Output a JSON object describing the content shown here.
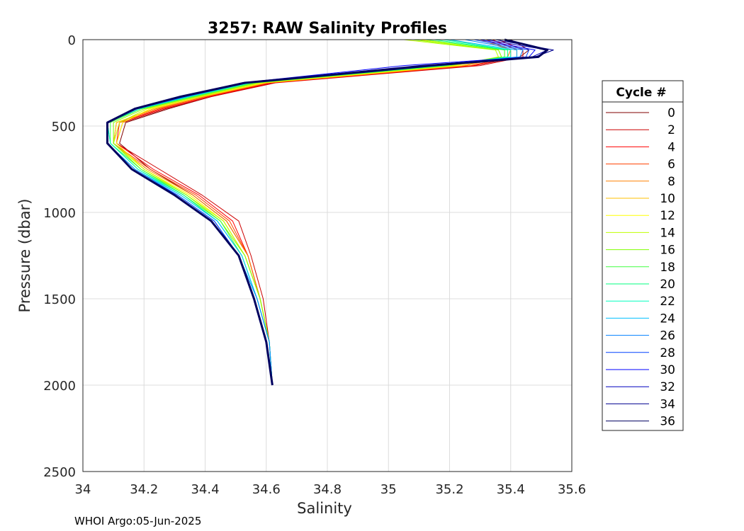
{
  "footer": "WHOI Argo:05-Jun-2025",
  "chart_data": {
    "type": "line",
    "title": "3257: RAW Salinity Profiles",
    "xlabel": "Salinity",
    "ylabel": "Pressure (dbar)",
    "xlim": [
      34,
      35.6
    ],
    "ylim": [
      0,
      2500
    ],
    "y_reversed": true,
    "grid": true,
    "xticks": [
      "34",
      "34.2",
      "34.4",
      "34.6",
      "34.8",
      "35",
      "35.2",
      "35.4",
      "35.6"
    ],
    "yticks": [
      "0",
      "500",
      "1000",
      "1500",
      "2000",
      "2500"
    ],
    "legend": {
      "title": "Cycle #",
      "placement": "right"
    },
    "series": [
      {
        "name": "0",
        "color": "#800000",
        "salinity": [
          35.4,
          35.46,
          35.43,
          35.28,
          34.62,
          34.42,
          34.28,
          34.14,
          34.12,
          34.22,
          34.36,
          34.47,
          34.54,
          34.58,
          34.61,
          34.62
        ],
        "pressure": [
          0,
          60,
          100,
          150,
          250,
          330,
          400,
          480,
          600,
          750,
          900,
          1050,
          1250,
          1500,
          1750,
          2000
        ]
      },
      {
        "name": "2",
        "color": "#cc0000",
        "salinity": [
          35.36,
          35.44,
          35.44,
          35.3,
          34.63,
          34.42,
          34.27,
          34.13,
          34.11,
          34.25,
          34.39,
          34.51,
          34.55,
          34.59,
          34.61,
          34.62
        ],
        "pressure": [
          0,
          60,
          100,
          150,
          250,
          330,
          400,
          480,
          600,
          750,
          900,
          1050,
          1250,
          1500,
          1750,
          2000
        ]
      },
      {
        "name": "4",
        "color": "#ff0000",
        "salinity": [
          35.34,
          35.42,
          35.42,
          35.28,
          34.62,
          34.41,
          34.26,
          34.12,
          34.11,
          34.23,
          34.38,
          34.49,
          34.54,
          34.58,
          34.61,
          34.62
        ],
        "pressure": [
          0,
          60,
          100,
          150,
          250,
          330,
          400,
          480,
          600,
          750,
          900,
          1050,
          1250,
          1500,
          1750,
          2000
        ]
      },
      {
        "name": "6",
        "color": "#ff4000",
        "salinity": [
          35.32,
          35.4,
          35.4,
          35.27,
          34.61,
          34.4,
          34.25,
          34.12,
          34.1,
          34.22,
          34.37,
          34.48,
          34.54,
          34.58,
          34.61,
          34.62
        ],
        "pressure": [
          0,
          60,
          100,
          150,
          250,
          330,
          400,
          480,
          600,
          750,
          900,
          1050,
          1250,
          1500,
          1750,
          2000
        ]
      },
      {
        "name": "8",
        "color": "#ff8000",
        "salinity": [
          35.3,
          35.4,
          35.39,
          35.25,
          34.6,
          34.4,
          34.24,
          34.11,
          34.1,
          34.21,
          34.36,
          34.47,
          34.54,
          34.58,
          34.61,
          34.62
        ],
        "pressure": [
          0,
          60,
          100,
          150,
          250,
          330,
          400,
          480,
          600,
          750,
          900,
          1050,
          1250,
          1500,
          1750,
          2000
        ]
      },
      {
        "name": "10",
        "color": "#ffbf00",
        "salinity": [
          35.2,
          35.38,
          35.38,
          35.24,
          34.6,
          34.39,
          34.23,
          34.11,
          34.1,
          34.2,
          34.35,
          34.46,
          34.53,
          34.58,
          34.61,
          34.62
        ],
        "pressure": [
          0,
          60,
          100,
          150,
          250,
          330,
          400,
          480,
          600,
          750,
          900,
          1050,
          1250,
          1500,
          1750,
          2000
        ]
      },
      {
        "name": "12",
        "color": "#ffff00",
        "salinity": [
          35.1,
          35.36,
          35.37,
          35.22,
          34.59,
          34.38,
          34.22,
          34.13,
          34.11,
          34.2,
          34.35,
          34.46,
          34.53,
          34.58,
          34.61,
          34.62
        ],
        "pressure": [
          0,
          60,
          100,
          150,
          250,
          330,
          400,
          480,
          600,
          750,
          900,
          1050,
          1250,
          1500,
          1750,
          2000
        ]
      },
      {
        "name": "14",
        "color": "#bfff00",
        "salinity": [
          35.05,
          35.35,
          35.36,
          35.21,
          34.58,
          34.38,
          34.21,
          34.12,
          34.1,
          34.2,
          34.34,
          34.46,
          34.53,
          34.58,
          34.61,
          34.62
        ],
        "pressure": [
          0,
          60,
          100,
          150,
          250,
          330,
          400,
          480,
          600,
          750,
          900,
          1050,
          1250,
          1500,
          1750,
          2000
        ]
      },
      {
        "name": "16",
        "color": "#80ff00",
        "salinity": [
          35.08,
          35.36,
          35.37,
          35.2,
          34.57,
          34.37,
          34.2,
          34.1,
          34.1,
          34.19,
          34.34,
          34.45,
          34.53,
          34.58,
          34.61,
          34.62
        ],
        "pressure": [
          0,
          60,
          100,
          150,
          250,
          330,
          400,
          480,
          600,
          750,
          900,
          1050,
          1250,
          1500,
          1750,
          2000
        ]
      },
      {
        "name": "18",
        "color": "#40ff40",
        "salinity": [
          35.12,
          35.38,
          35.38,
          35.19,
          34.56,
          34.36,
          34.19,
          34.09,
          34.09,
          34.19,
          34.33,
          34.45,
          34.52,
          34.57,
          34.61,
          34.62
        ],
        "pressure": [
          0,
          60,
          100,
          150,
          250,
          330,
          400,
          480,
          600,
          750,
          900,
          1050,
          1250,
          1500,
          1750,
          2000
        ]
      },
      {
        "name": "20",
        "color": "#00ff80",
        "salinity": [
          35.15,
          35.39,
          35.39,
          35.18,
          34.55,
          34.35,
          34.19,
          34.08,
          34.09,
          34.18,
          34.33,
          34.44,
          34.52,
          34.57,
          34.61,
          34.62
        ],
        "pressure": [
          0,
          60,
          100,
          150,
          250,
          330,
          400,
          480,
          600,
          750,
          900,
          1050,
          1250,
          1500,
          1750,
          2000
        ]
      },
      {
        "name": "22",
        "color": "#00ffbf",
        "salinity": [
          35.18,
          35.4,
          35.4,
          35.17,
          34.55,
          34.35,
          34.18,
          34.08,
          34.09,
          34.18,
          34.32,
          34.44,
          34.52,
          34.57,
          34.61,
          34.62
        ],
        "pressure": [
          0,
          60,
          100,
          150,
          250,
          330,
          400,
          480,
          600,
          750,
          900,
          1050,
          1250,
          1500,
          1750,
          2000
        ]
      },
      {
        "name": "24",
        "color": "#00bfff",
        "salinity": [
          35.2,
          35.42,
          35.42,
          35.16,
          34.54,
          34.34,
          34.18,
          34.08,
          34.08,
          34.17,
          34.32,
          34.44,
          34.52,
          34.57,
          34.61,
          34.62
        ],
        "pressure": [
          0,
          60,
          100,
          150,
          250,
          330,
          400,
          480,
          600,
          750,
          900,
          1050,
          1250,
          1500,
          1750,
          2000
        ]
      },
      {
        "name": "26",
        "color": "#0080ff",
        "salinity": [
          35.25,
          35.44,
          35.43,
          35.16,
          34.54,
          34.34,
          34.18,
          34.08,
          34.08,
          34.17,
          34.31,
          34.43,
          34.51,
          34.57,
          34.61,
          34.62
        ],
        "pressure": [
          0,
          60,
          100,
          150,
          250,
          330,
          400,
          480,
          600,
          750,
          900,
          1050,
          1250,
          1500,
          1750,
          2000
        ]
      },
      {
        "name": "28",
        "color": "#0040ff",
        "salinity": [
          35.28,
          35.46,
          35.45,
          35.15,
          34.53,
          34.33,
          34.17,
          34.08,
          34.08,
          34.16,
          34.31,
          34.43,
          34.51,
          34.56,
          34.6,
          34.62
        ],
        "pressure": [
          0,
          60,
          100,
          150,
          250,
          330,
          400,
          480,
          600,
          750,
          900,
          1050,
          1250,
          1500,
          1750,
          2000
        ]
      },
      {
        "name": "30",
        "color": "#0000ff",
        "salinity": [
          35.3,
          35.48,
          35.46,
          35.05,
          34.52,
          34.33,
          34.17,
          34.08,
          34.08,
          34.16,
          34.3,
          34.42,
          34.51,
          34.56,
          34.6,
          34.62
        ],
        "pressure": [
          0,
          60,
          100,
          150,
          250,
          330,
          400,
          480,
          600,
          750,
          900,
          1050,
          1250,
          1500,
          1750,
          2000
        ]
      },
      {
        "name": "32",
        "color": "#0000bf",
        "salinity": [
          35.32,
          35.52,
          35.47,
          35.12,
          34.52,
          34.32,
          34.17,
          34.08,
          34.08,
          34.16,
          34.3,
          34.42,
          34.51,
          34.56,
          34.6,
          34.62
        ],
        "pressure": [
          0,
          60,
          100,
          150,
          250,
          330,
          400,
          480,
          600,
          750,
          900,
          1050,
          1250,
          1500,
          1750,
          2000
        ]
      },
      {
        "name": "34",
        "color": "#000090",
        "salinity": [
          35.35,
          35.54,
          35.48,
          35.1,
          34.52,
          34.32,
          34.17,
          34.08,
          34.08,
          34.16,
          34.3,
          34.42,
          34.51,
          34.56,
          34.6,
          34.62
        ],
        "pressure": [
          0,
          60,
          100,
          150,
          250,
          330,
          400,
          480,
          600,
          750,
          900,
          1050,
          1250,
          1500,
          1750,
          2000
        ]
      },
      {
        "name": "36",
        "color": "#000060",
        "salinity": [
          35.38,
          35.52,
          35.49,
          35.14,
          34.53,
          34.32,
          34.17,
          34.08,
          34.08,
          34.16,
          34.3,
          34.42,
          34.51,
          34.56,
          34.6,
          34.62
        ],
        "pressure": [
          0,
          60,
          100,
          150,
          250,
          330,
          400,
          480,
          600,
          750,
          900,
          1050,
          1250,
          1500,
          1750,
          2000
        ]
      }
    ]
  }
}
